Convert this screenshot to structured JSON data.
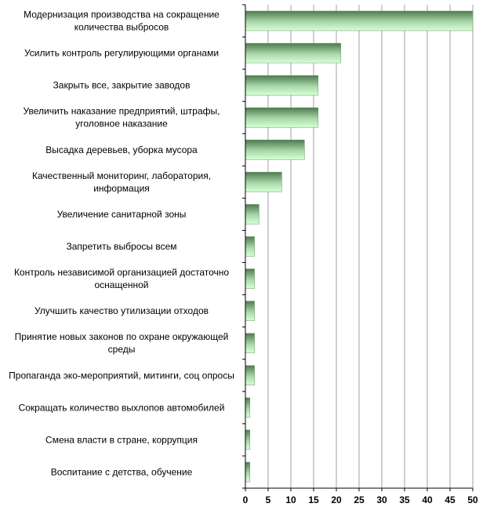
{
  "chart_data": {
    "type": "bar",
    "orientation": "horizontal",
    "categories": [
      [
        "Модернизация производства на сокращение",
        "количества выбросов"
      ],
      [
        "Усилить контроль регулирующими органами"
      ],
      [
        "Закрыть все, закрытие заводов"
      ],
      [
        "Увеличить наказание предприятий, штрафы,",
        "уголовное наказание"
      ],
      [
        "Высадка деревьев, уборка мусора"
      ],
      [
        "Качественный мониторинг, лаборатория,",
        "информация"
      ],
      [
        "Увеличение санитарной зоны"
      ],
      [
        "Запретить выбросы всем"
      ],
      [
        "Контроль независимой организацией достаточно",
        "оснащенной"
      ],
      [
        "Улучшить качество утилизации отходов"
      ],
      [
        "Принятие новых законов по охране окружающей",
        "среды"
      ],
      [
        "Пропаганда эко-мероприятий, митинги, соц опросы"
      ],
      [
        "Сокращать количество выхлопов автомобилей"
      ],
      [
        "Смена власти в стране, коррупция"
      ],
      [
        "Воспитание с детства, обучение"
      ]
    ],
    "values": [
      50,
      21,
      16,
      16,
      13,
      8,
      3,
      2,
      2,
      2,
      2,
      2,
      1,
      1,
      1
    ],
    "xlim": [
      0,
      50
    ],
    "xticks": [
      "0",
      "5",
      "10",
      "15",
      "20",
      "25",
      "30",
      "35",
      "40",
      "45",
      "50"
    ],
    "grid": true,
    "colors": {
      "bar_top": "#4f7a4f",
      "bar_mid": "#a8d8a8",
      "bar_bottom": "#d8ffd8",
      "grid": "#a0a0a0",
      "axis": "#000000"
    }
  }
}
